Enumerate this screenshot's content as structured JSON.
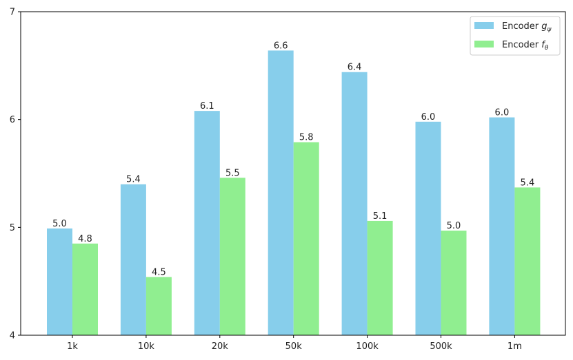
{
  "chart_data": {
    "type": "bar",
    "categories": [
      "1k",
      "10k",
      "20k",
      "50k",
      "100k",
      "500k",
      "1m"
    ],
    "series": [
      {
        "name": "Encoder g_ψ",
        "legend_base": "Encoder ",
        "legend_symbol": "g",
        "legend_sub": "ψ",
        "color": "#87ceeb",
        "values": [
          4.99,
          5.4,
          6.08,
          6.64,
          6.44,
          5.98,
          6.02
        ],
        "labels": [
          "5.0",
          "5.4",
          "6.1",
          "6.6",
          "6.4",
          "6.0",
          "6.0"
        ]
      },
      {
        "name": "Encoder f_θ",
        "legend_base": "Encoder ",
        "legend_symbol": "f",
        "legend_sub": "θ",
        "color": "#90ee90",
        "values": [
          4.85,
          4.54,
          5.46,
          5.79,
          5.06,
          4.97,
          5.37
        ],
        "labels": [
          "4.8",
          "4.5",
          "5.5",
          "5.8",
          "5.1",
          "5.0",
          "5.4"
        ]
      }
    ],
    "yticks": [
      "4",
      "5",
      "6",
      "7"
    ],
    "ylim": [
      4,
      7
    ],
    "grid": false,
    "legend_position": "top-right",
    "title": "",
    "xlabel": "",
    "ylabel": ""
  }
}
